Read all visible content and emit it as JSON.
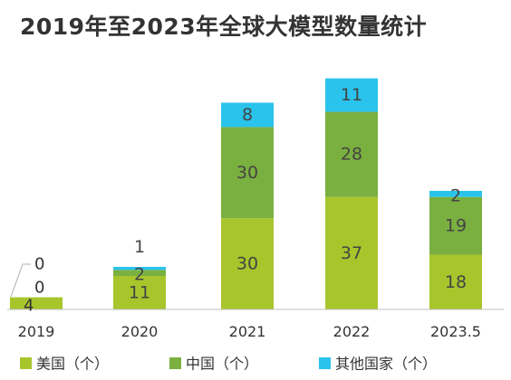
{
  "chart_data": {
    "type": "bar",
    "stacked": true,
    "title": "2019年至2023年全球大模型数量统计",
    "categories": [
      "2019",
      "2020",
      "2021",
      "2022",
      "2023.5"
    ],
    "series": [
      {
        "name": "美国（个）",
        "color": "#a8c62c",
        "values": [
          4,
          11,
          30,
          37,
          18
        ]
      },
      {
        "name": "中国（个）",
        "color": "#7ab040",
        "values": [
          0,
          2,
          30,
          28,
          19
        ]
      },
      {
        "name": "其他国家（个）",
        "color": "#29c3ec",
        "values": [
          0,
          1,
          8,
          11,
          2
        ]
      }
    ],
    "grid": false,
    "legend_position": "bottom"
  }
}
